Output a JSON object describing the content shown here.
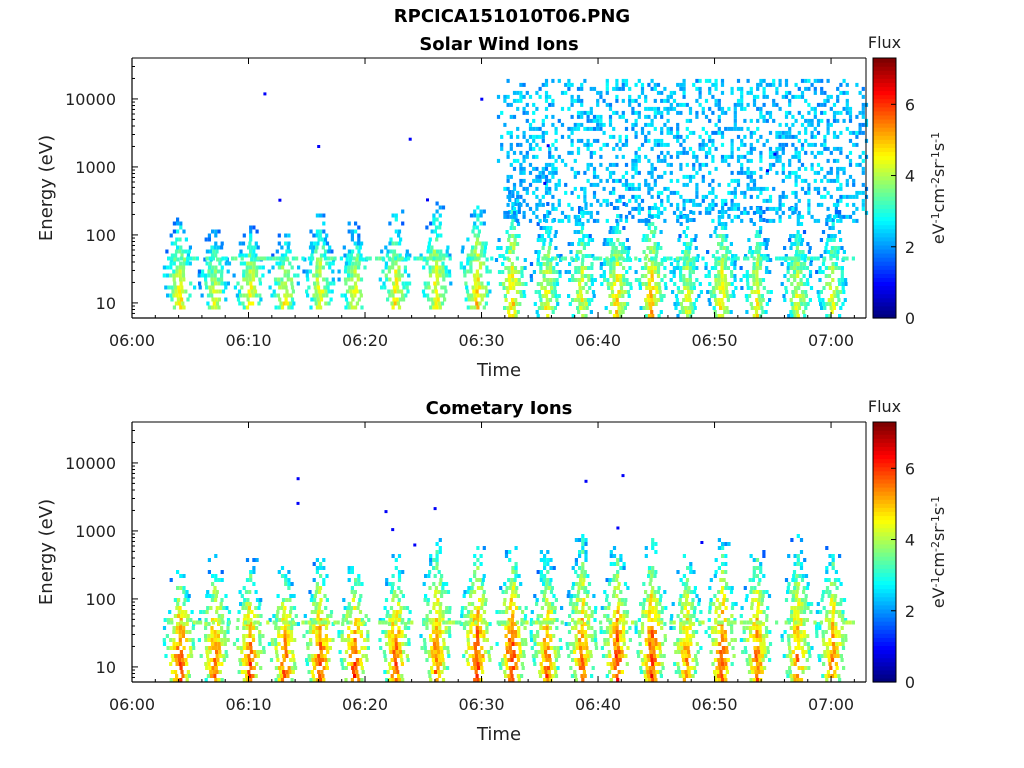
{
  "figure": {
    "filename": "RPCICA151010T06.PNG"
  },
  "colorbar": {
    "label": "Flux",
    "unit_parts": [
      "eV",
      "-1",
      "cm",
      "-2",
      "sr",
      "-1",
      "s",
      "-1"
    ],
    "ticks": [
      "0",
      "2",
      "4",
      "6"
    ],
    "range": [
      0,
      7.3
    ],
    "colormap": "jet"
  },
  "chart_data": [
    {
      "type": "heatmap",
      "title": "Solar Wind Ions",
      "xlabel": "Time",
      "ylabel": "Energy (eV)",
      "xlim": [
        "06:00",
        "07:03"
      ],
      "ylim": [
        6,
        40000
      ],
      "yscale": "log",
      "xticks": [
        "06:00",
        "06:10",
        "06:20",
        "06:30",
        "06:40",
        "06:50",
        "07:00"
      ],
      "yticks": [
        "10",
        "100",
        "1000",
        "10000"
      ],
      "grid": false,
      "bursts": [
        {
          "time": 4.0,
          "emin": 8,
          "emax": 180,
          "peak": 4.8
        },
        {
          "time": 7.0,
          "emin": 8,
          "emax": 120,
          "peak": 4.5
        },
        {
          "time": 10.0,
          "emin": 8,
          "emax": 150,
          "peak": 4.7
        },
        {
          "time": 13.0,
          "emin": 8,
          "emax": 120,
          "peak": 4.7
        },
        {
          "time": 16.0,
          "emin": 8,
          "emax": 200,
          "peak": 4.7
        },
        {
          "time": 19.0,
          "emin": 8,
          "emax": 140,
          "peak": 4.7
        },
        {
          "time": 22.5,
          "emin": 8,
          "emax": 220,
          "peak": 4.8
        },
        {
          "time": 26.0,
          "emin": 8,
          "emax": 300,
          "peak": 4.8
        },
        {
          "time": 29.5,
          "emin": 8,
          "emax": 300,
          "peak": 5.0
        },
        {
          "time": 32.5,
          "emin": 6,
          "emax": 400,
          "peak": 5.0
        },
        {
          "time": 35.5,
          "emin": 6,
          "emax": 300,
          "peak": 4.6
        },
        {
          "time": 38.5,
          "emin": 6,
          "emax": 300,
          "peak": 4.6
        },
        {
          "time": 41.5,
          "emin": 6,
          "emax": 300,
          "peak": 5.0
        },
        {
          "time": 44.5,
          "emin": 6,
          "emax": 300,
          "peak": 5.2
        },
        {
          "time": 47.5,
          "emin": 6,
          "emax": 250,
          "peak": 4.5
        },
        {
          "time": 50.5,
          "emin": 6,
          "emax": 300,
          "peak": 4.8
        },
        {
          "time": 53.5,
          "emin": 6,
          "emax": 250,
          "peak": 4.6
        },
        {
          "time": 57.0,
          "emin": 6,
          "emax": 250,
          "peak": 4.5
        },
        {
          "time": 60.0,
          "emin": 6,
          "emax": 250,
          "peak": 4.5
        }
      ],
      "background": {
        "tstart": 30.5,
        "tend": 63,
        "emin": 150,
        "emax": 18000,
        "level": 1.8
      }
    },
    {
      "type": "heatmap",
      "title": "Cometary Ions",
      "xlabel": "Time",
      "ylabel": "Energy (eV)",
      "xlim": [
        "06:00",
        "07:03"
      ],
      "ylim": [
        6,
        40000
      ],
      "yscale": "log",
      "xticks": [
        "06:00",
        "06:10",
        "06:20",
        "06:30",
        "06:40",
        "06:50",
        "07:00"
      ],
      "yticks": [
        "10",
        "100",
        "1000",
        "10000"
      ],
      "grid": false,
      "bursts": [
        {
          "time": 4.0,
          "emin": 6,
          "emax": 300,
          "peak": 6.2
        },
        {
          "time": 7.0,
          "emin": 6,
          "emax": 400,
          "peak": 5.8
        },
        {
          "time": 10.0,
          "emin": 6,
          "emax": 350,
          "peak": 6.0
        },
        {
          "time": 13.0,
          "emin": 6,
          "emax": 300,
          "peak": 5.9
        },
        {
          "time": 16.0,
          "emin": 6,
          "emax": 350,
          "peak": 6.2
        },
        {
          "time": 19.0,
          "emin": 6,
          "emax": 300,
          "peak": 6.2
        },
        {
          "time": 22.5,
          "emin": 6,
          "emax": 400,
          "peak": 6.0
        },
        {
          "time": 26.0,
          "emin": 6,
          "emax": 900,
          "peak": 5.8
        },
        {
          "time": 29.5,
          "emin": 6,
          "emax": 600,
          "peak": 6.2
        },
        {
          "time": 32.5,
          "emin": 6,
          "emax": 600,
          "peak": 6.3
        },
        {
          "time": 35.5,
          "emin": 6,
          "emax": 500,
          "peak": 5.8
        },
        {
          "time": 38.5,
          "emin": 6,
          "emax": 800,
          "peak": 5.8
        },
        {
          "time": 41.5,
          "emin": 6,
          "emax": 600,
          "peak": 6.1
        },
        {
          "time": 44.5,
          "emin": 6,
          "emax": 700,
          "peak": 6.2
        },
        {
          "time": 47.5,
          "emin": 6,
          "emax": 500,
          "peak": 5.6
        },
        {
          "time": 50.5,
          "emin": 6,
          "emax": 700,
          "peak": 6.0
        },
        {
          "time": 53.5,
          "emin": 6,
          "emax": 600,
          "peak": 5.8
        },
        {
          "time": 57.0,
          "emin": 6,
          "emax": 800,
          "peak": 5.6
        },
        {
          "time": 60.0,
          "emin": 6,
          "emax": 600,
          "peak": 5.7
        }
      ],
      "background": {
        "tstart": 0,
        "tend": 0,
        "emin": 0,
        "emax": 0,
        "level": 0
      }
    }
  ]
}
